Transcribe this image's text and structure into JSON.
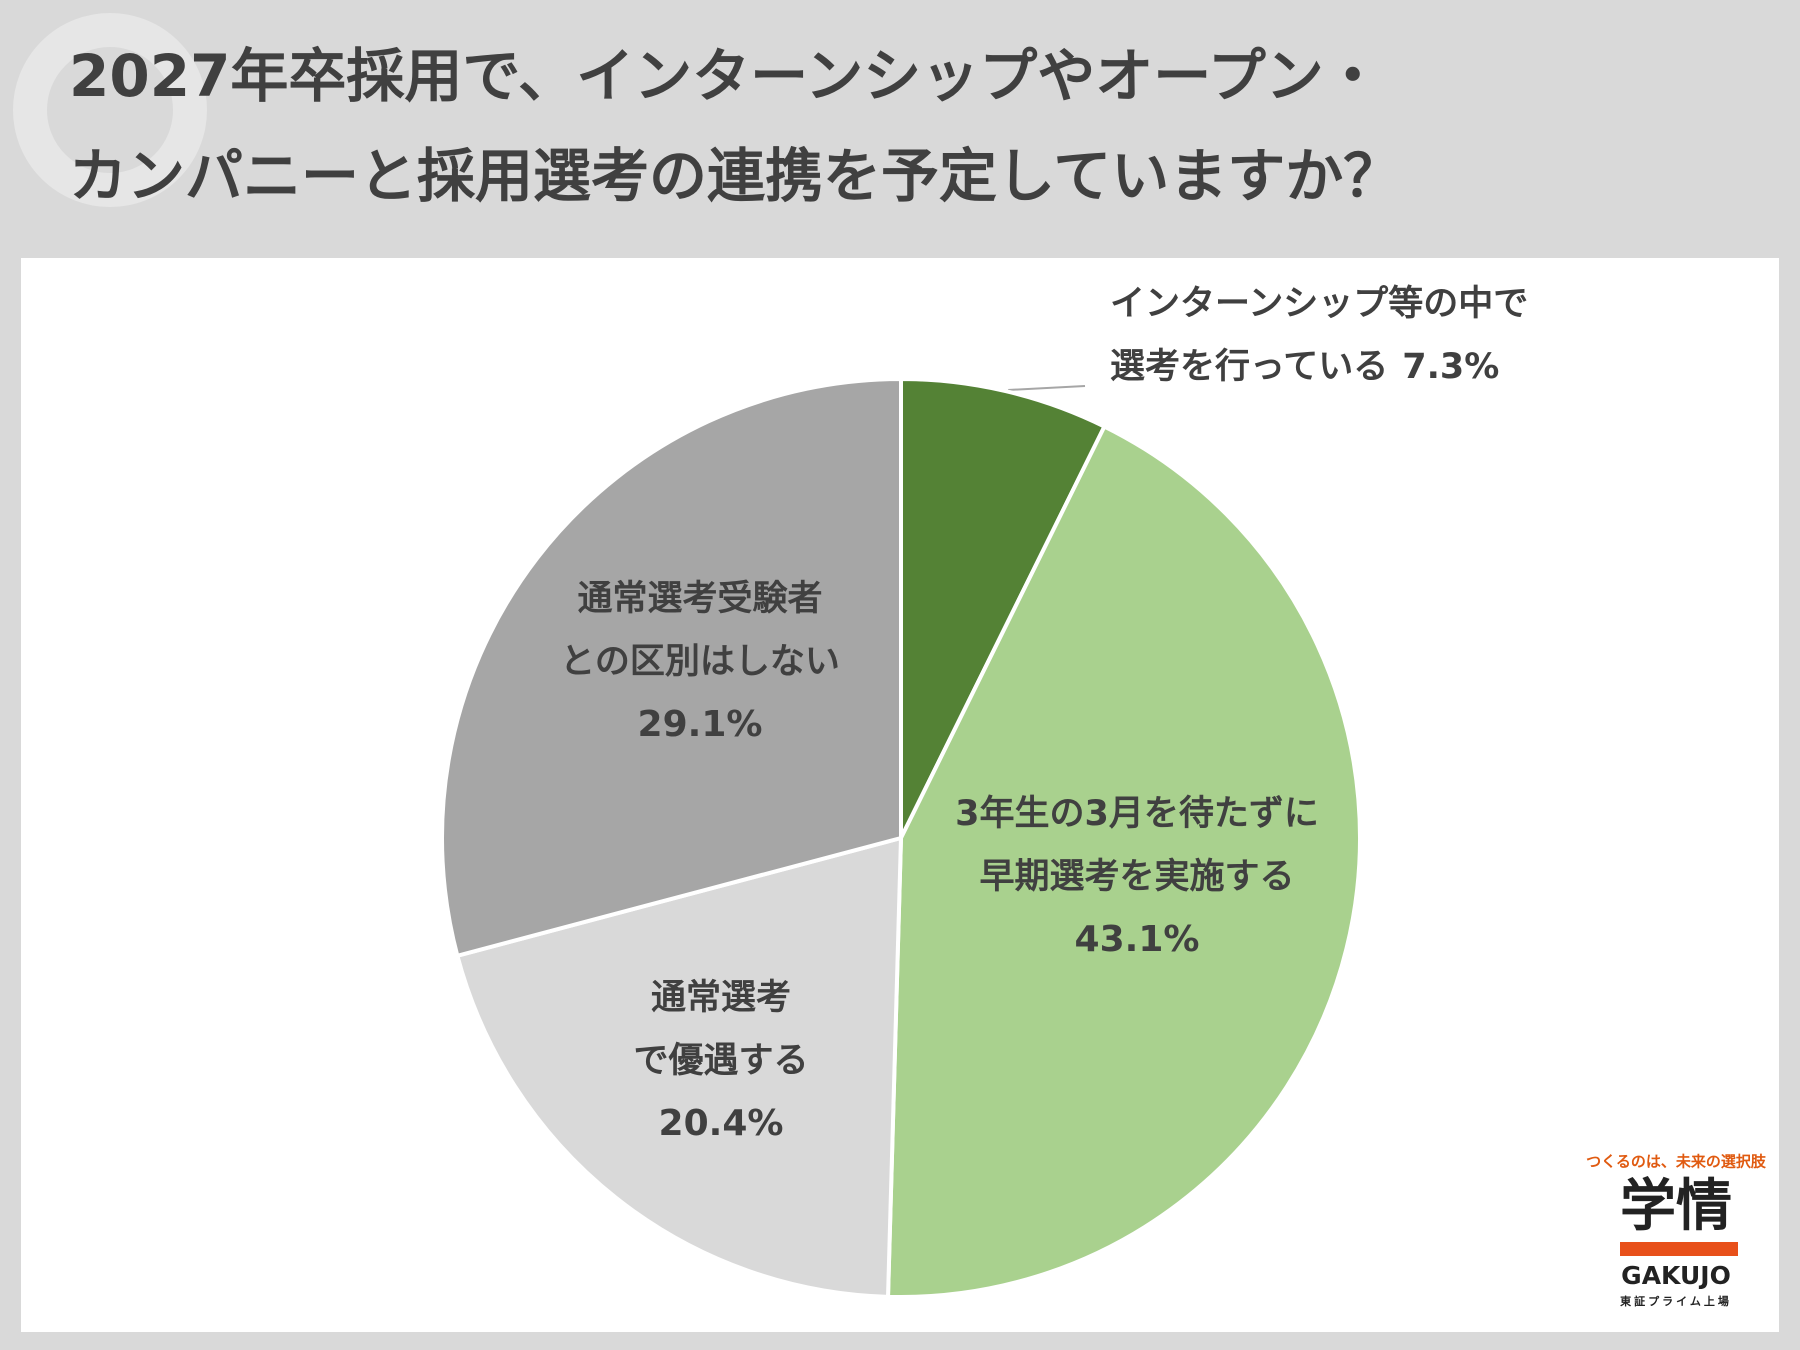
{
  "chart_data": {
    "type": "pie",
    "title": [
      "2027年卒採用で、インターンシップやオープン・",
      "カンパニーと採用選考の連携を予定していますか？"
    ],
    "categories": [
      [
        "インターンシップ等の中で",
        "選考を行っている"
      ],
      [
        "3年生の3月を待たずに",
        "早期選考を実施する"
      ],
      [
        "通常選考",
        "で優遇する"
      ],
      [
        "通常選考受験者",
        "との区別はしない"
      ]
    ],
    "values": [
      7.3,
      43.1,
      20.4,
      29.1
    ],
    "value_labels": [
      "7.3%",
      "43.1%",
      "20.4%",
      "29.1%"
    ],
    "colors": [
      "#548235",
      "#a9d18e",
      "#d9d9d9",
      "#a6a6a6"
    ]
  },
  "logo": {
    "tagline": "つくるのは、未来の選択肢",
    "name": "学情",
    "roman": "GAKUJO",
    "note": "東証プライム上場"
  }
}
